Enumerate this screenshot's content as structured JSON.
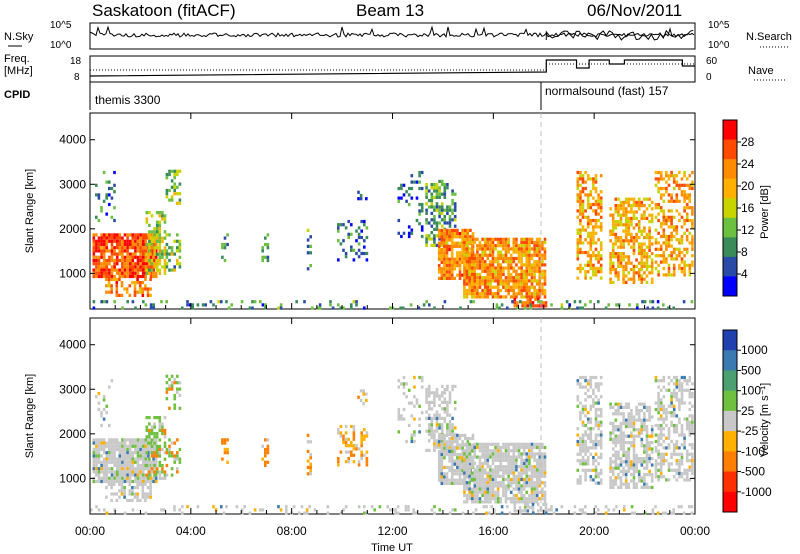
{
  "header": {
    "station": "Saskatoon (fitACF)",
    "beam": "Beam 13",
    "date": "06/Nov/2011"
  },
  "panels": {
    "nsky_label": "N.Sky",
    "nsky_ticks": [
      "10^5",
      "10^0"
    ],
    "nsearch_label": "N.Search",
    "nsearch_ticks": [
      "10^5",
      "10^0"
    ],
    "freq_label_1": "Freq.",
    "freq_label_2": "[MHz]",
    "freq_ticks": [
      "18",
      "8"
    ],
    "nave_label": "Nave",
    "nave_ticks": [
      "60",
      "0"
    ],
    "cpid_label": "CPID",
    "cpid_1": "themis 3300",
    "cpid_2": "normalsound (fast) 157"
  },
  "chart_data": [
    {
      "type": "heatmap",
      "panel": "power",
      "ylabel": "Slant Range [km]",
      "yticks": [
        "1000",
        "2000",
        "3000",
        "4000"
      ],
      "ylim": [
        200,
        4600
      ],
      "xlabel": "Time UT",
      "xticks": [
        "00:00",
        "04:00",
        "08:00",
        "12:00",
        "16:00",
        "20:00",
        "00:00"
      ],
      "xlim_hours": [
        0,
        24
      ],
      "colorbar_label": "Power [dB]",
      "colorbar_ticks": [
        "28",
        "24",
        "20",
        "16",
        "12",
        "8",
        "4"
      ],
      "colorbar_colors": [
        "#ff0000",
        "#ff4a00",
        "#ff8c00",
        "#ffb000",
        "#c8d400",
        "#6cc040",
        "#3a8a5a",
        "#2a4aa8",
        "#0000ff"
      ]
    },
    {
      "type": "heatmap",
      "panel": "velocity",
      "ylabel": "Slant Range [km]",
      "yticks": [
        "1000",
        "2000",
        "3000",
        "4000"
      ],
      "ylim": [
        200,
        4600
      ],
      "xlabel": "Time UT",
      "xticks": [
        "00:00",
        "04:00",
        "08:00",
        "12:00",
        "16:00",
        "20:00",
        "00:00"
      ],
      "xlim_hours": [
        0,
        24
      ],
      "colorbar_label": "Velocity [m s⁻¹]",
      "colorbar_ticks": [
        "1000",
        "500",
        "100",
        "25",
        "-25",
        "-100",
        "-500",
        "-1000"
      ],
      "colorbar_colors": [
        "#2040b0",
        "#3a7ab0",
        "#4aa070",
        "#70c040",
        "#c8c8c8",
        "#ffb000",
        "#ff8000",
        "#ff3000",
        "#ff0000"
      ]
    }
  ],
  "schedule": {
    "mode_switch_hour": 18.1
  }
}
